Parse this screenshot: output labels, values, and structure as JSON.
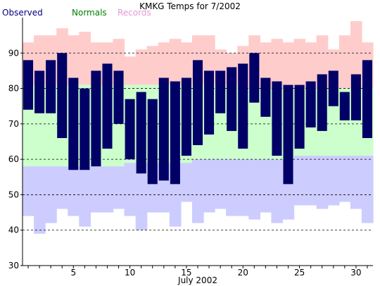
{
  "chart_data": {
    "type": "bar",
    "title": "KMKG Temps for 7/2002",
    "xlabel": "July 2002",
    "ylabel": "",
    "legend": [
      "Observed",
      "Normals",
      "Records"
    ],
    "legend_placement": "top-left",
    "ylim": [
      30,
      100
    ],
    "yticks": [
      30,
      40,
      50,
      60,
      70,
      80,
      90
    ],
    "xlim": [
      1,
      31
    ],
    "xticks": [
      5,
      10,
      15,
      20,
      25,
      30
    ],
    "grid": "dashed horizontal lines at 40, 50, 60, 70, 80, 90",
    "colors": {
      "observed": "#000066",
      "normals": "#ccffcc",
      "records_high": "#ffcccc",
      "records_low": "#ccccff",
      "legend_observed": "#000080",
      "legend_normals": "#008000",
      "legend_records": "#e39ad5"
    },
    "days": [
      1,
      2,
      3,
      4,
      5,
      6,
      7,
      8,
      9,
      10,
      11,
      12,
      13,
      14,
      15,
      16,
      17,
      18,
      19,
      20,
      21,
      22,
      23,
      24,
      25,
      26,
      27,
      28,
      29,
      30,
      31
    ],
    "series": [
      {
        "name": "Observed",
        "high": [
          88,
          85,
          88,
          90,
          83,
          80,
          85,
          87,
          85,
          77,
          79,
          77,
          83,
          82,
          83,
          88,
          85,
          85,
          86,
          87,
          90,
          83,
          82,
          81,
          81,
          82,
          84,
          85,
          79,
          84,
          88
        ],
        "low": [
          74,
          73,
          73,
          66,
          57,
          57,
          58,
          63,
          70,
          60,
          56,
          53,
          54,
          53,
          61,
          64,
          67,
          73,
          68,
          63,
          76,
          72,
          61,
          53,
          63,
          69,
          68,
          75,
          71,
          71,
          66
        ]
      },
      {
        "name": "Normals",
        "high": [
          81,
          81,
          81,
          81,
          81,
          81,
          81,
          81,
          81,
          81,
          81,
          81,
          81,
          81,
          81,
          81,
          81,
          81,
          81,
          80,
          80,
          80,
          80,
          80,
          80,
          80,
          80,
          80,
          80,
          80,
          80
        ],
        "low": [
          58,
          58,
          58,
          58,
          58,
          58,
          58,
          58,
          58,
          59,
          59,
          59,
          59,
          59,
          59,
          60,
          60,
          60,
          60,
          60,
          60,
          60,
          60,
          60,
          61,
          61,
          61,
          61,
          61,
          61,
          61
        ]
      },
      {
        "name": "Records",
        "high": [
          93,
          95,
          95,
          97,
          95,
          96,
          93,
          93,
          94,
          89,
          91,
          92,
          93,
          94,
          93,
          95,
          95,
          91,
          90,
          92,
          95,
          93,
          94,
          93,
          94,
          93,
          95,
          91,
          95,
          99,
          93
        ],
        "low": [
          44,
          39,
          42,
          46,
          44,
          41,
          45,
          45,
          46,
          44,
          40,
          45,
          45,
          41,
          48,
          42,
          45,
          46,
          44,
          44,
          43,
          45,
          42,
          43,
          47,
          47,
          46,
          47,
          48,
          46,
          42
        ]
      }
    ]
  }
}
